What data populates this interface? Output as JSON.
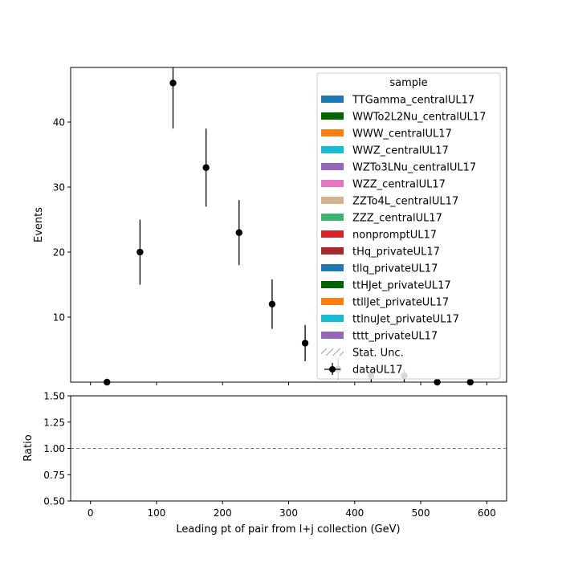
{
  "chart_data": [
    {
      "type": "scatter",
      "ylabel": "Events",
      "ylim": [
        0,
        48.4
      ],
      "xlim": [
        -30,
        630
      ],
      "yticks": [
        10,
        20,
        30,
        40
      ],
      "series": [
        {
          "name": "dataUL17",
          "color": "#000000",
          "points": [
            {
              "x": 25,
              "y": 0,
              "err": 0
            },
            {
              "x": 75,
              "y": 20,
              "err": 5.0
            },
            {
              "x": 125,
              "y": 46,
              "err": 7.0
            },
            {
              "x": 175,
              "y": 33,
              "err": 6.0
            },
            {
              "x": 225,
              "y": 23,
              "err": 5.0
            },
            {
              "x": 275,
              "y": 12,
              "err": 3.8
            },
            {
              "x": 325,
              "y": 6,
              "err": 2.8
            },
            {
              "x": 375,
              "y": 2,
              "err": 1.6
            },
            {
              "x": 425,
              "y": 1,
              "err": 1.0
            },
            {
              "x": 475,
              "y": 1,
              "err": 1.0
            },
            {
              "x": 525,
              "y": 0,
              "err": 0
            },
            {
              "x": 575,
              "y": 0,
              "err": 0
            }
          ]
        }
      ],
      "legend": {
        "title": "sample",
        "placement": "top-right",
        "entries": [
          {
            "label": "TTGamma_centralUL17",
            "kind": "patch",
            "color": "#1f77b4"
          },
          {
            "label": "WWTo2L2Nu_centralUL17",
            "kind": "patch",
            "color": "#006400"
          },
          {
            "label": "WWW_centralUL17",
            "kind": "patch",
            "color": "#ff7f0e"
          },
          {
            "label": "WWZ_centralUL17",
            "kind": "patch",
            "color": "#17becf"
          },
          {
            "label": "WZTo3LNu_centralUL17",
            "kind": "patch",
            "color": "#9467bd"
          },
          {
            "label": "WZZ_centralUL17",
            "kind": "patch",
            "color": "#e377c2"
          },
          {
            "label": "ZZTo4L_centralUL17",
            "kind": "patch",
            "color": "#d2b48c"
          },
          {
            "label": "ZZZ_centralUL17",
            "kind": "patch",
            "color": "#3cb371"
          },
          {
            "label": "nonpromptUL17",
            "kind": "patch",
            "color": "#d62728"
          },
          {
            "label": "tHq_privateUL17",
            "kind": "patch",
            "color": "#a52a2a"
          },
          {
            "label": "tllq_privateUL17",
            "kind": "patch",
            "color": "#1f77b4"
          },
          {
            "label": "ttHJet_privateUL17",
            "kind": "patch",
            "color": "#006400"
          },
          {
            "label": "ttllJet_privateUL17",
            "kind": "patch",
            "color": "#ff7f0e"
          },
          {
            "label": "ttlnuJet_privateUL17",
            "kind": "patch",
            "color": "#17becf"
          },
          {
            "label": "tttt_privateUL17",
            "kind": "patch",
            "color": "#9467bd"
          },
          {
            "label": "Stat. Unc.",
            "kind": "hatch",
            "color": "#808080"
          },
          {
            "label": "dataUL17",
            "kind": "errorbar",
            "color": "#000000"
          }
        ]
      },
      "grid": false
    },
    {
      "type": "line",
      "xlabel": "Leading pt of pair from l+j collection (GeV)",
      "ylabel": "Ratio",
      "xlim": [
        -30,
        630
      ],
      "ylim": [
        0.5,
        1.5
      ],
      "xticks": [
        0,
        100,
        200,
        300,
        400,
        500,
        600
      ],
      "xtick_labels": [
        "0",
        "100",
        "200",
        "300",
        "400",
        "500",
        "600"
      ],
      "yticks": [
        0.5,
        0.75,
        1.0,
        1.25,
        1.5
      ],
      "ytick_labels": [
        "0.50",
        "0.75",
        "1.00",
        "1.25",
        "1.50"
      ],
      "reference_line": {
        "y": 1.0,
        "style": "dashed",
        "color": "#808080"
      },
      "grid": false
    }
  ]
}
